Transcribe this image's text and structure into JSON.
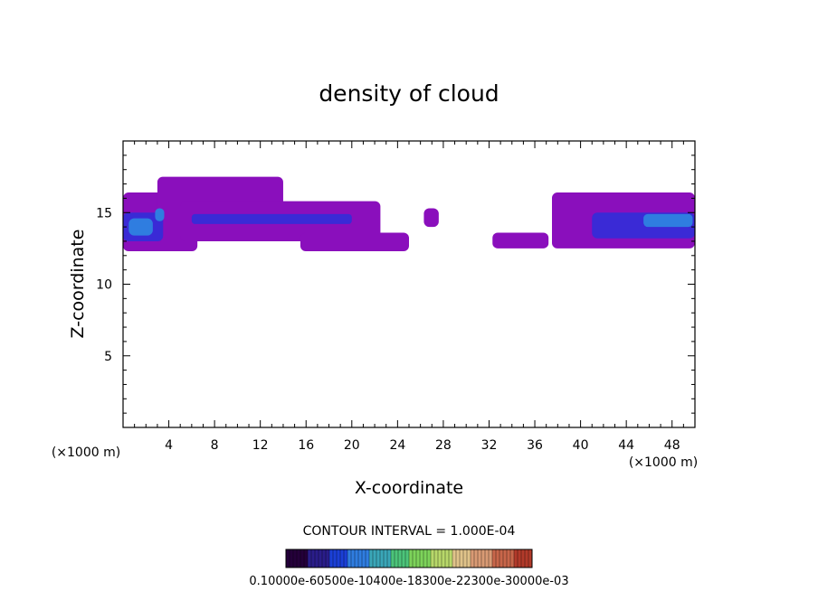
{
  "chart_data": {
    "type": "heatmap",
    "title": "density of cloud",
    "xlabel": "X-coordinate",
    "ylabel": "Z-coordinate",
    "x_unit": "(×1000 m)",
    "xlim": [
      0,
      50
    ],
    "ylim": [
      0,
      20
    ],
    "x_ticks": [
      "4",
      "8",
      "12",
      "16",
      "20",
      "24",
      "28",
      "32",
      "36",
      "40",
      "44",
      "48"
    ],
    "y_ticks": [
      "5",
      "10",
      "15"
    ],
    "contour_interval_text": "CONTOUR INTERVAL = 1.000E-04",
    "colorbar": {
      "label_text": "0.10000e-60500e-10400e-18300e-22300e-30000e-03",
      "colors": [
        "#24003a",
        "#2a1d8a",
        "#1b3fd6",
        "#2f7de0",
        "#3aa6b8",
        "#4cc47a",
        "#7dd35a",
        "#b8d86a",
        "#e0c38a",
        "#d99a74",
        "#c8664a",
        "#b23a2a"
      ]
    },
    "regions": [
      {
        "level": "low",
        "color": "#8a0fbc",
        "x": [
          0.0,
          6.5
        ],
        "z": [
          12.3,
          16.4
        ]
      },
      {
        "level": "low",
        "color": "#8a0fbc",
        "x": [
          3.0,
          14.0
        ],
        "z": [
          13.0,
          17.5
        ]
      },
      {
        "level": "low",
        "color": "#8a0fbc",
        "x": [
          5.0,
          22.5
        ],
        "z": [
          13.0,
          15.8
        ]
      },
      {
        "level": "low",
        "color": "#8a0fbc",
        "x": [
          15.5,
          25.0
        ],
        "z": [
          12.3,
          13.6
        ]
      },
      {
        "level": "low",
        "color": "#8a0fbc",
        "x": [
          26.3,
          27.6
        ],
        "z": [
          14.0,
          15.3
        ]
      },
      {
        "level": "low",
        "color": "#8a0fbc",
        "x": [
          32.3,
          37.2
        ],
        "z": [
          12.5,
          13.6
        ]
      },
      {
        "level": "low",
        "color": "#8a0fbc",
        "x": [
          37.5,
          50.0
        ],
        "z": [
          12.5,
          16.4
        ]
      },
      {
        "level": "mid",
        "color": "#3a2ad6",
        "x": [
          0.0,
          3.5
        ],
        "z": [
          13.0,
          15.0
        ]
      },
      {
        "level": "mid",
        "color": "#3a2ad6",
        "x": [
          6.0,
          20.0
        ],
        "z": [
          14.2,
          14.9
        ]
      },
      {
        "level": "mid",
        "color": "#3a2ad6",
        "x": [
          41.0,
          50.0
        ],
        "z": [
          13.2,
          15.0
        ]
      },
      {
        "level": "high",
        "color": "#2f7de0",
        "x": [
          0.5,
          2.6
        ],
        "z": [
          13.4,
          14.6
        ]
      },
      {
        "level": "high",
        "color": "#2f7de0",
        "x": [
          2.8,
          3.6
        ],
        "z": [
          14.4,
          15.3
        ]
      },
      {
        "level": "high",
        "color": "#2f7de0",
        "x": [
          45.5,
          49.8
        ],
        "z": [
          14.0,
          14.9
        ]
      }
    ]
  }
}
